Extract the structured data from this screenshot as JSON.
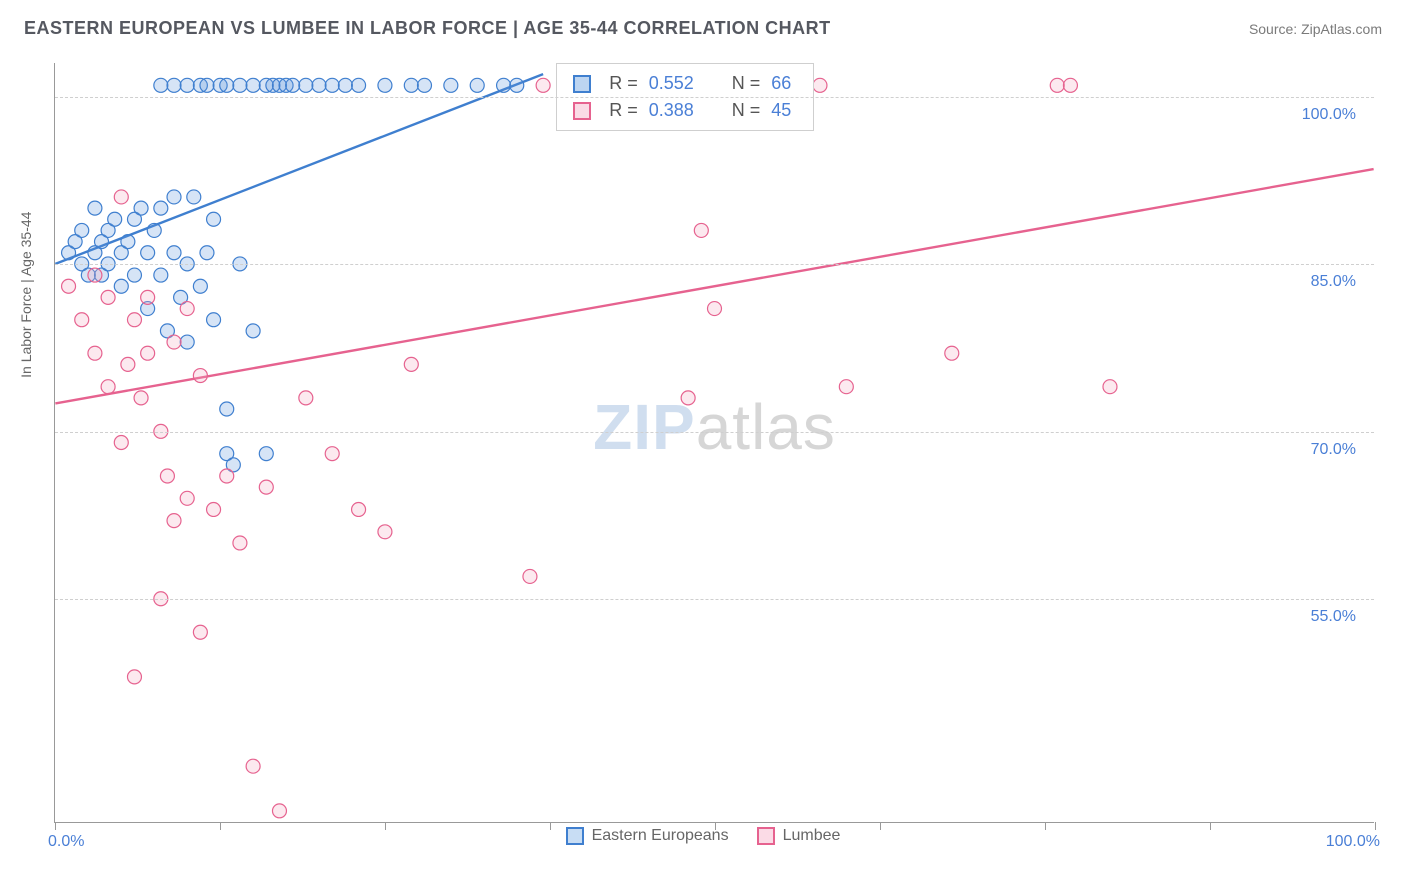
{
  "header": {
    "title": "EASTERN EUROPEAN VS LUMBEE IN LABOR FORCE | AGE 35-44 CORRELATION CHART",
    "source": "Source: ZipAtlas.com"
  },
  "chart": {
    "type": "scatter",
    "ylabel": "In Labor Force | Age 35-44",
    "xlim": [
      0,
      100
    ],
    "ylim": [
      35,
      103
    ],
    "x_ticks": [
      0,
      12.5,
      25,
      37.5,
      50,
      62.5,
      75,
      87.5,
      100
    ],
    "x_tick_labels_shown": {
      "left": "0.0%",
      "right": "100.0%"
    },
    "y_gridlines": [
      55,
      70,
      85,
      100
    ],
    "y_tick_labels": [
      "55.0%",
      "70.0%",
      "85.0%",
      "100.0%"
    ],
    "background_color": "#ffffff",
    "grid_color": "#cfcfcf",
    "axis_color": "#999999",
    "label_color": "#4a7fd6",
    "marker_radius": 7,
    "marker_fill_opacity": 0.25,
    "marker_stroke_width": 1.2,
    "trend_line_width": 2.4,
    "series": [
      {
        "name": "Eastern Europeans",
        "color": "#5a95dd",
        "stroke": "#3f7fcf",
        "R": "0.552",
        "N": "66",
        "trend": {
          "x1": 0,
          "y1": 85,
          "x2": 37,
          "y2": 102
        },
        "points": [
          [
            1,
            86
          ],
          [
            1.5,
            87
          ],
          [
            2,
            85
          ],
          [
            2,
            88
          ],
          [
            2.5,
            84
          ],
          [
            3,
            86
          ],
          [
            3,
            90
          ],
          [
            3.5,
            87
          ],
          [
            3.5,
            84
          ],
          [
            4,
            88
          ],
          [
            4,
            85
          ],
          [
            4.5,
            89
          ],
          [
            5,
            86
          ],
          [
            5,
            83
          ],
          [
            5.5,
            87
          ],
          [
            6,
            89
          ],
          [
            6,
            84
          ],
          [
            6.5,
            90
          ],
          [
            7,
            86
          ],
          [
            7,
            81
          ],
          [
            7.5,
            88
          ],
          [
            8,
            84
          ],
          [
            8,
            90
          ],
          [
            8.5,
            79
          ],
          [
            9,
            86
          ],
          [
            9,
            91
          ],
          [
            9.5,
            82
          ],
          [
            10,
            85
          ],
          [
            10,
            78
          ],
          [
            10.5,
            91
          ],
          [
            11,
            83
          ],
          [
            11.5,
            86
          ],
          [
            12,
            80
          ],
          [
            12,
            89
          ],
          [
            13,
            72
          ],
          [
            13,
            68
          ],
          [
            13.5,
            67
          ],
          [
            14,
            85
          ],
          [
            15,
            79
          ],
          [
            16,
            68
          ],
          [
            8,
            101
          ],
          [
            9,
            101
          ],
          [
            10,
            101
          ],
          [
            11,
            101
          ],
          [
            11.5,
            101
          ],
          [
            12.5,
            101
          ],
          [
            13,
            101
          ],
          [
            14,
            101
          ],
          [
            15,
            101
          ],
          [
            16,
            101
          ],
          [
            16.5,
            101
          ],
          [
            17,
            101
          ],
          [
            17.5,
            101
          ],
          [
            18,
            101
          ],
          [
            19,
            101
          ],
          [
            20,
            101
          ],
          [
            21,
            101
          ],
          [
            22,
            101
          ],
          [
            23,
            101
          ],
          [
            25,
            101
          ],
          [
            27,
            101
          ],
          [
            28,
            101
          ],
          [
            30,
            101
          ],
          [
            32,
            101
          ],
          [
            34,
            101
          ],
          [
            35,
            101
          ]
        ]
      },
      {
        "name": "Lumbee",
        "color": "#f2a6c0",
        "stroke": "#e6628f",
        "R": "0.388",
        "N": "45",
        "trend": {
          "x1": 0,
          "y1": 72.5,
          "x2": 100,
          "y2": 93.5
        },
        "points": [
          [
            1,
            83
          ],
          [
            2,
            80
          ],
          [
            3,
            84
          ],
          [
            3,
            77
          ],
          [
            4,
            74
          ],
          [
            4,
            82
          ],
          [
            5,
            69
          ],
          [
            5,
            91
          ],
          [
            5.5,
            76
          ],
          [
            6,
            80
          ],
          [
            6,
            48
          ],
          [
            6.5,
            73
          ],
          [
            7,
            77
          ],
          [
            7,
            82
          ],
          [
            8,
            70
          ],
          [
            8,
            55
          ],
          [
            8.5,
            66
          ],
          [
            9,
            78
          ],
          [
            9,
            62
          ],
          [
            10,
            64
          ],
          [
            10,
            81
          ],
          [
            11,
            75
          ],
          [
            11,
            52
          ],
          [
            12,
            63
          ],
          [
            13,
            66
          ],
          [
            14,
            60
          ],
          [
            15,
            40
          ],
          [
            16,
            65
          ],
          [
            17,
            36
          ],
          [
            19,
            73
          ],
          [
            21,
            68
          ],
          [
            23,
            63
          ],
          [
            25,
            61
          ],
          [
            27,
            76
          ],
          [
            36,
            57
          ],
          [
            37,
            101
          ],
          [
            48,
            73
          ],
          [
            49,
            88
          ],
          [
            50,
            81
          ],
          [
            58,
            101
          ],
          [
            60,
            74
          ],
          [
            68,
            77
          ],
          [
            76,
            101
          ],
          [
            77,
            101
          ],
          [
            80,
            74
          ]
        ]
      }
    ],
    "stats_box": {
      "left_pct": 38,
      "top_pct": 0
    },
    "watermark": {
      "zip": "ZIP",
      "atlas": "atlas"
    },
    "bottom_legend": [
      {
        "label": "Eastern Europeans",
        "fill": "#c8ddf4",
        "stroke": "#3f7fcf"
      },
      {
        "label": "Lumbee",
        "fill": "#fbdbe6",
        "stroke": "#e6628f"
      }
    ]
  }
}
